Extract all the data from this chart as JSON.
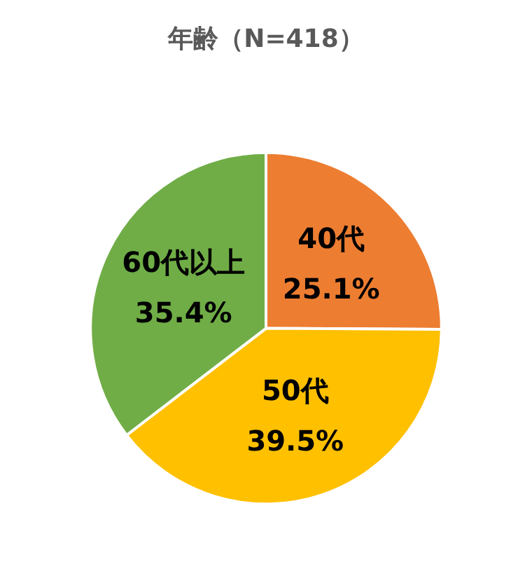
{
  "chart_data": {
    "type": "pie",
    "title": "年齢（N=418）",
    "categories": [
      "40代",
      "50代",
      "60代以上"
    ],
    "values": [
      25.1,
      39.5,
      35.4
    ],
    "colors": [
      "#ed7d31",
      "#ffc000",
      "#70ad47"
    ],
    "value_labels": [
      "25.1%",
      "39.5%",
      "35.4%"
    ],
    "legend": false
  }
}
